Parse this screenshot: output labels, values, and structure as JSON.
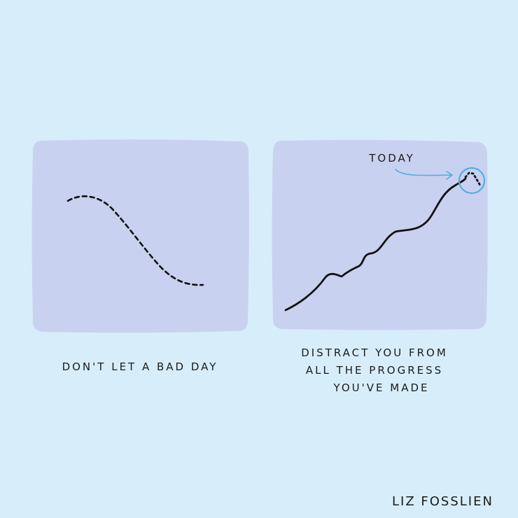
{
  "colors": {
    "background": "#d7eefa",
    "panel": "#c9d1f0",
    "line": "#111111",
    "highlight": "#4fb0e2"
  },
  "left_panel": {
    "caption": "DON'T LET A BAD DAY",
    "line_style": "dashed",
    "trend": "down"
  },
  "right_panel": {
    "annotation": "TODAY",
    "caption_lines": [
      "DISTRACT YOU FROM",
      "ALL THE PROGRESS",
      "YOU'VE MADE"
    ],
    "line_style": "solid",
    "trend": "up"
  },
  "signature": "LIZ FOSSLIEN"
}
